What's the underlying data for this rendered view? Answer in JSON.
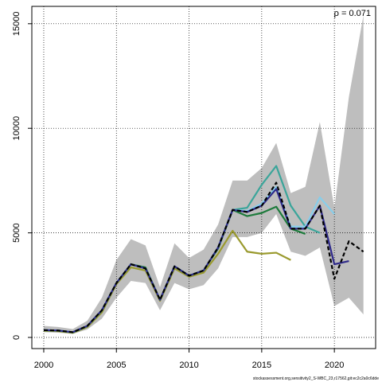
{
  "chart_data": {
    "type": "line",
    "annotation": "ρ = 0.071",
    "footer": "stockassessment.org,sensitivity2_S-WBC_23,r17562,git:ec2c2a0c6dde",
    "x": [
      2000,
      2001,
      2002,
      2003,
      2004,
      2005,
      2006,
      2007,
      2008,
      2009,
      2010,
      2011,
      2012,
      2013,
      2014,
      2015,
      2016,
      2017,
      2018,
      2019,
      2020,
      2021,
      2022
    ],
    "band_color": "#bebebe",
    "band_upper": [
      550,
      500,
      400,
      800,
      1900,
      3700,
      4700,
      4400,
      2400,
      4500,
      3800,
      4200,
      5400,
      7500,
      7500,
      8100,
      9300,
      6900,
      7200,
      10300,
      6200,
      11500,
      15400
    ],
    "band_lower": [
      250,
      230,
      170,
      380,
      900,
      1900,
      2700,
      2600,
      1300,
      2600,
      2300,
      2500,
      3300,
      4800,
      4800,
      5000,
      5900,
      4100,
      3900,
      4300,
      1500,
      1900,
      1100
    ],
    "series": [
      {
        "color": "#9a9a2e",
        "values": [
          320,
          300,
          220,
          500,
          1200,
          2550,
          3350,
          3200,
          1750,
          3300,
          2900,
          3100,
          4000,
          5100,
          4100,
          4000,
          4050,
          3700,
          null,
          null,
          null,
          null,
          null
        ]
      },
      {
        "color": "#1e7b3c",
        "values": [
          340,
          320,
          240,
          540,
          1280,
          2600,
          3500,
          3350,
          1800,
          3400,
          2950,
          3200,
          4250,
          6100,
          5800,
          5950,
          6250,
          5200,
          4950,
          null,
          null,
          null,
          null
        ]
      },
      {
        "color": "#3aa59a",
        "values": [
          350,
          330,
          250,
          550,
          1300,
          2600,
          3500,
          3300,
          1800,
          3400,
          2950,
          3200,
          4300,
          6100,
          6200,
          7300,
          8200,
          6300,
          5300,
          5000,
          null,
          null,
          null
        ]
      },
      {
        "color": "#87ceeb",
        "values": [
          350,
          330,
          250,
          550,
          1300,
          2600,
          3500,
          3300,
          1800,
          3400,
          2950,
          3200,
          4300,
          6100,
          6050,
          6400,
          7200,
          5300,
          5300,
          6700,
          5900,
          null,
          null
        ]
      },
      {
        "color": "#2f2a8a",
        "values": [
          350,
          330,
          250,
          550,
          1300,
          2600,
          3500,
          3300,
          1800,
          3400,
          2950,
          3200,
          4300,
          6100,
          6000,
          6300,
          7100,
          5200,
          5200,
          6300,
          3500,
          3650,
          null
        ]
      },
      {
        "color": "#000000",
        "dashed": true,
        "values": [
          350,
          330,
          250,
          550,
          1300,
          2600,
          3500,
          3300,
          1800,
          3400,
          2950,
          3200,
          4300,
          6100,
          6000,
          6300,
          7400,
          5200,
          5200,
          6300,
          2800,
          4600,
          4100
        ]
      }
    ],
    "xlim": [
      1999.18,
      2022.84
    ],
    "ylim": [
      -533,
      15830
    ],
    "xticks": [
      2000,
      2005,
      2010,
      2015,
      2020
    ],
    "yticks": [
      0,
      5000,
      10000,
      15000
    ],
    "grid": true
  }
}
